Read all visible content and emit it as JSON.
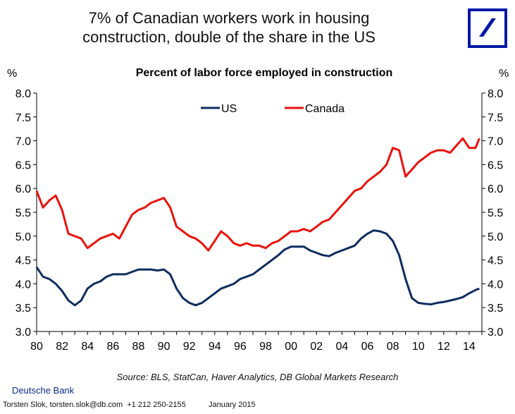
{
  "headline": {
    "line1": "7% of Canadian workers work in housing",
    "line2": "construction, double of the share in the US"
  },
  "logo": {
    "name": "deutsche-bank-logo",
    "color": "#0018A8"
  },
  "footer": {
    "source": "Source: BLS, StatCan, Haver Analytics, DB Global Markets Research",
    "bank": "Deutsche Bank",
    "contact": "Torsten Slok, torsten.slok@db.com  +1 212 250-2155",
    "date": "January 2015"
  },
  "chart_data": {
    "type": "line",
    "title": "Percent of labor force employed in construction",
    "ylabel_left": "%",
    "ylabel_right": "%",
    "xlabel": "",
    "x_tick_labels": [
      "80",
      "82",
      "84",
      "86",
      "88",
      "90",
      "92",
      "94",
      "96",
      "98",
      "00",
      "02",
      "04",
      "06",
      "08",
      "10",
      "12",
      "14"
    ],
    "x_tick_years": [
      1980,
      1982,
      1984,
      1986,
      1988,
      1990,
      1992,
      1994,
      1996,
      1998,
      2000,
      2002,
      2004,
      2006,
      2008,
      2010,
      2012,
      2014
    ],
    "xlim": [
      1980,
      2015
    ],
    "ylim": [
      3.0,
      8.0
    ],
    "y_ticks": [
      "3.0",
      "3.5",
      "4.0",
      "4.5",
      "5.0",
      "5.5",
      "6.0",
      "6.5",
      "7.0",
      "7.5",
      "8.0"
    ],
    "grid": false,
    "legend_position": "top-center",
    "series": [
      {
        "name": "US",
        "color": "#0d2c5e",
        "x": [
          1980,
          1980.5,
          1981,
          1981.5,
          1982,
          1982.5,
          1983,
          1983.5,
          1984,
          1984.5,
          1985,
          1985.5,
          1986,
          1986.5,
          1987,
          1987.5,
          1988,
          1988.5,
          1989,
          1989.5,
          1990,
          1990.5,
          1991,
          1991.5,
          1992,
          1992.5,
          1993,
          1993.5,
          1994,
          1994.5,
          1995,
          1995.5,
          1996,
          1996.5,
          1997,
          1997.5,
          1998,
          1998.5,
          1999,
          1999.5,
          2000,
          2000.5,
          2001,
          2001.5,
          2002,
          2002.5,
          2003,
          2003.5,
          2004,
          2004.5,
          2005,
          2005.5,
          2006,
          2006.5,
          2007,
          2007.5,
          2008,
          2008.5,
          2009,
          2009.5,
          2010,
          2010.5,
          2011,
          2011.5,
          2012,
          2012.5,
          2013,
          2013.5,
          2014,
          2014.5,
          2014.8
        ],
        "values": [
          4.35,
          4.15,
          4.1,
          4.0,
          3.85,
          3.65,
          3.55,
          3.65,
          3.9,
          4.0,
          4.05,
          4.15,
          4.2,
          4.2,
          4.2,
          4.25,
          4.3,
          4.3,
          4.3,
          4.28,
          4.3,
          4.2,
          3.9,
          3.7,
          3.6,
          3.55,
          3.6,
          3.7,
          3.8,
          3.9,
          3.95,
          4.0,
          4.1,
          4.15,
          4.2,
          4.3,
          4.4,
          4.5,
          4.6,
          4.72,
          4.78,
          4.78,
          4.78,
          4.7,
          4.65,
          4.6,
          4.58,
          4.65,
          4.7,
          4.75,
          4.8,
          4.95,
          5.05,
          5.12,
          5.1,
          5.05,
          4.9,
          4.6,
          4.1,
          3.7,
          3.6,
          3.58,
          3.57,
          3.6,
          3.62,
          3.65,
          3.68,
          3.72,
          3.8,
          3.87,
          3.9
        ]
      },
      {
        "name": "Canada",
        "color": "#e8120c",
        "x": [
          1980,
          1980.5,
          1981,
          1981.5,
          1982,
          1982.5,
          1983,
          1983.5,
          1984,
          1984.5,
          1985,
          1985.5,
          1986,
          1986.5,
          1987,
          1987.5,
          1988,
          1988.5,
          1989,
          1989.5,
          1990,
          1990.5,
          1991,
          1991.5,
          1992,
          1992.5,
          1993,
          1993.5,
          1994,
          1994.5,
          1995,
          1995.5,
          1996,
          1996.5,
          1997,
          1997.5,
          1998,
          1998.5,
          1999,
          1999.5,
          2000,
          2000.5,
          2001,
          2001.5,
          2002,
          2002.5,
          2003,
          2003.5,
          2004,
          2004.5,
          2005,
          2005.5,
          2006,
          2006.5,
          2007,
          2007.5,
          2008,
          2008.5,
          2009,
          2009.5,
          2010,
          2010.5,
          2011,
          2011.5,
          2012,
          2012.5,
          2013,
          2013.5,
          2014,
          2014.5,
          2014.8
        ],
        "values": [
          5.95,
          5.6,
          5.75,
          5.85,
          5.55,
          5.05,
          5.0,
          4.95,
          4.75,
          4.85,
          4.95,
          5.0,
          5.05,
          4.95,
          5.2,
          5.45,
          5.55,
          5.6,
          5.7,
          5.75,
          5.8,
          5.6,
          5.2,
          5.1,
          5.0,
          4.95,
          4.85,
          4.7,
          4.9,
          5.1,
          5.0,
          4.85,
          4.8,
          4.85,
          4.8,
          4.8,
          4.75,
          4.85,
          4.9,
          5.0,
          5.1,
          5.1,
          5.15,
          5.1,
          5.2,
          5.3,
          5.35,
          5.5,
          5.65,
          5.8,
          5.95,
          6.0,
          6.15,
          6.25,
          6.35,
          6.5,
          6.85,
          6.8,
          6.25,
          6.4,
          6.55,
          6.65,
          6.75,
          6.8,
          6.8,
          6.75,
          6.9,
          7.05,
          6.85,
          6.85,
          7.05
        ]
      }
    ]
  }
}
